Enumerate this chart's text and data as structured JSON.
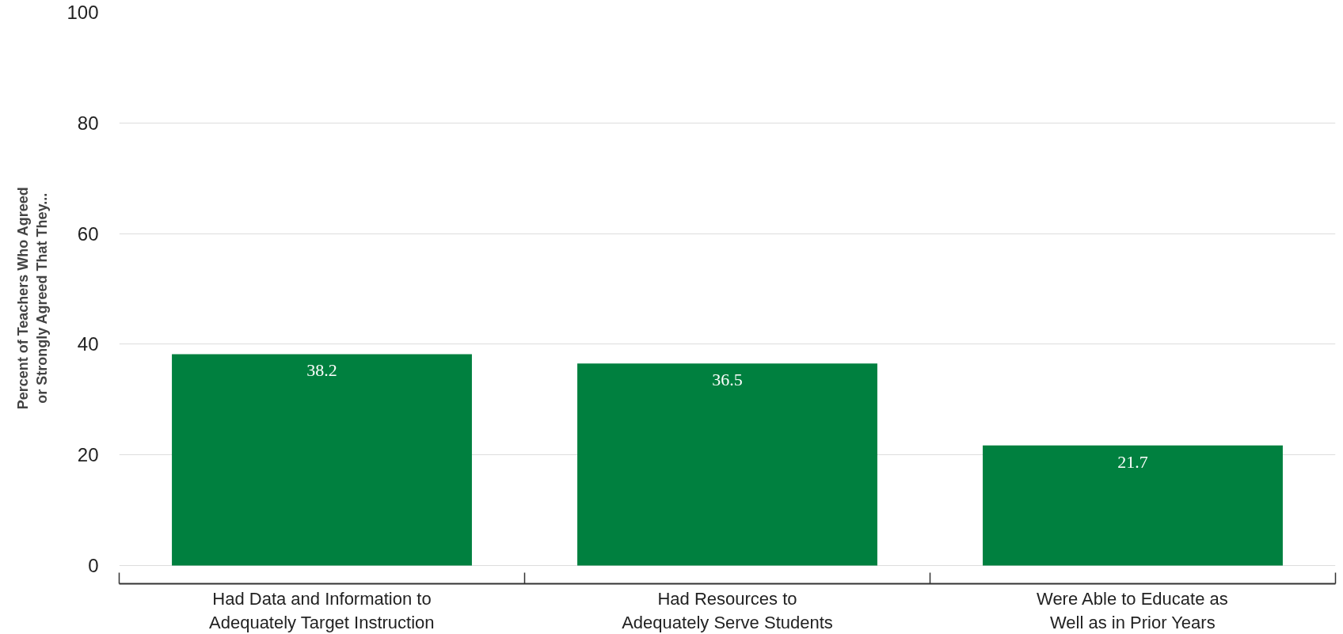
{
  "chart_data": {
    "type": "bar",
    "ylabel": "Percent of Teachers Who Agreed or Strongly Agreed That They...",
    "categories": [
      "Had Data and Information to Adequately Target Instruction",
      "Had Resources to Adequately Serve Students",
      "Were Able to Educate as Well as in Prior Years"
    ],
    "values": [
      38.2,
      36.5,
      21.7
    ],
    "color": "#00803f",
    "data_labels": true,
    "ylim": [
      -3.3,
      100
    ],
    "yticks": [
      0,
      20,
      40,
      60,
      80,
      100
    ],
    "grid": "y"
  }
}
